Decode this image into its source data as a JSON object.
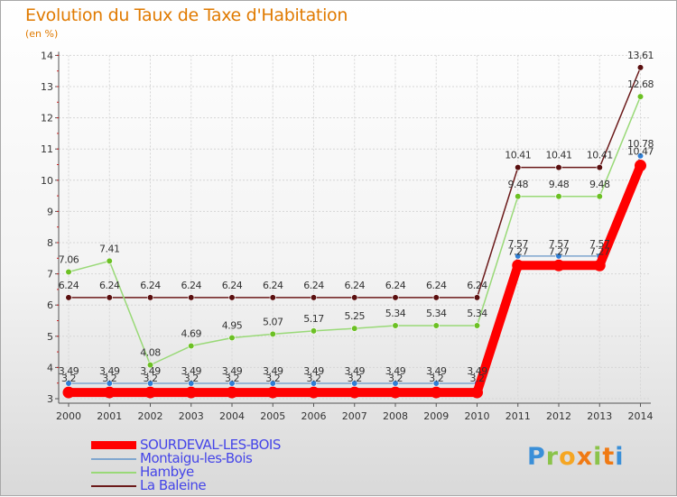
{
  "header": {
    "title": "Evolution du Taux de Taxe d'Habitation",
    "unit": "(en %)"
  },
  "logo": {
    "letters": [
      "P",
      "r",
      "o",
      "x",
      "i",
      "t",
      "i"
    ],
    "colors": [
      "#3a8fd8",
      "#8bc34a",
      "#f5a623",
      "#f07a14",
      "#8bc34a",
      "#f07a14",
      "#3a8fd8"
    ]
  },
  "chart_data": {
    "type": "line",
    "title": "Evolution du Taux de Taxe d'Habitation",
    "ylabel": "(en %)",
    "xlabel": "",
    "ylim": [
      3,
      14
    ],
    "yticks": [
      "3",
      "4",
      "5",
      "6",
      "7",
      "8",
      "9",
      "10",
      "11",
      "12",
      "13",
      "14"
    ],
    "categories": [
      "2000",
      "2001",
      "2002",
      "2003",
      "2004",
      "2005",
      "2006",
      "2007",
      "2008",
      "2009",
      "2010",
      "2011",
      "2012",
      "2013",
      "2014"
    ],
    "grid": true,
    "legend_position": "bottom-left",
    "series": [
      {
        "name": "La Baleine",
        "color": "#6b1a1a",
        "point_color": "#5a0f0f",
        "style": "thin",
        "values": [
          6.24,
          6.24,
          6.24,
          6.24,
          6.24,
          6.24,
          6.24,
          6.24,
          6.24,
          6.24,
          6.24,
          10.41,
          10.41,
          10.41,
          13.61
        ],
        "labels": [
          "6.24",
          "6.24",
          "6.24",
          "6.24",
          "6.24",
          "6.24",
          "6.24",
          "6.24",
          "6.24",
          "6.24",
          "6.24",
          "10.41",
          "10.41",
          "10.41",
          "13.61"
        ]
      },
      {
        "name": "Hambye",
        "color": "#99d977",
        "point_color": "#6cc024",
        "style": "thin",
        "values": [
          7.06,
          7.41,
          4.08,
          4.69,
          4.95,
          5.07,
          5.17,
          5.25,
          5.34,
          5.34,
          5.34,
          9.48,
          9.48,
          9.48,
          12.68
        ],
        "labels": [
          "7.06",
          "7.41",
          "4.08",
          "4.69",
          "4.95",
          "5.07",
          "5.17",
          "5.25",
          "5.34",
          "5.34",
          "5.34",
          "9.48",
          "9.48",
          "9.48",
          "12.68"
        ]
      },
      {
        "name": "Montaigu-les-Bois",
        "color": "#7fa6cf",
        "point_color": "#2f7fd6",
        "style": "thin",
        "values": [
          3.49,
          3.49,
          3.49,
          3.49,
          3.49,
          3.49,
          3.49,
          3.49,
          3.49,
          3.49,
          3.49,
          7.57,
          7.57,
          7.57,
          10.78
        ],
        "labels": [
          "3.49",
          "3.49",
          "3.49",
          "3.49",
          "3.49",
          "3.49",
          "3.49",
          "3.49",
          "3.49",
          "3.49",
          "3.49",
          "7.57",
          "7.57",
          "7.57",
          "10.78"
        ]
      },
      {
        "name": "SOURDEVAL-LES-BOIS",
        "color": "#ff0000",
        "point_color": "#ff0000",
        "style": "thick",
        "values": [
          3.2,
          3.2,
          3.2,
          3.2,
          3.2,
          3.2,
          3.2,
          3.2,
          3.2,
          3.2,
          3.2,
          7.27,
          7.27,
          7.27,
          10.47
        ],
        "labels": [
          "3.2",
          "3.2",
          "3.2",
          "3.2",
          "3.2",
          "3.2",
          "3.2",
          "3.2",
          "3.2",
          "3.2",
          "3.2",
          "7.27",
          "7.27",
          "7.27",
          "10.47"
        ]
      }
    ],
    "legend_order": [
      "SOURDEVAL-LES-BOIS",
      "Montaigu-les-Bois",
      "Hambye",
      "La Baleine"
    ]
  }
}
